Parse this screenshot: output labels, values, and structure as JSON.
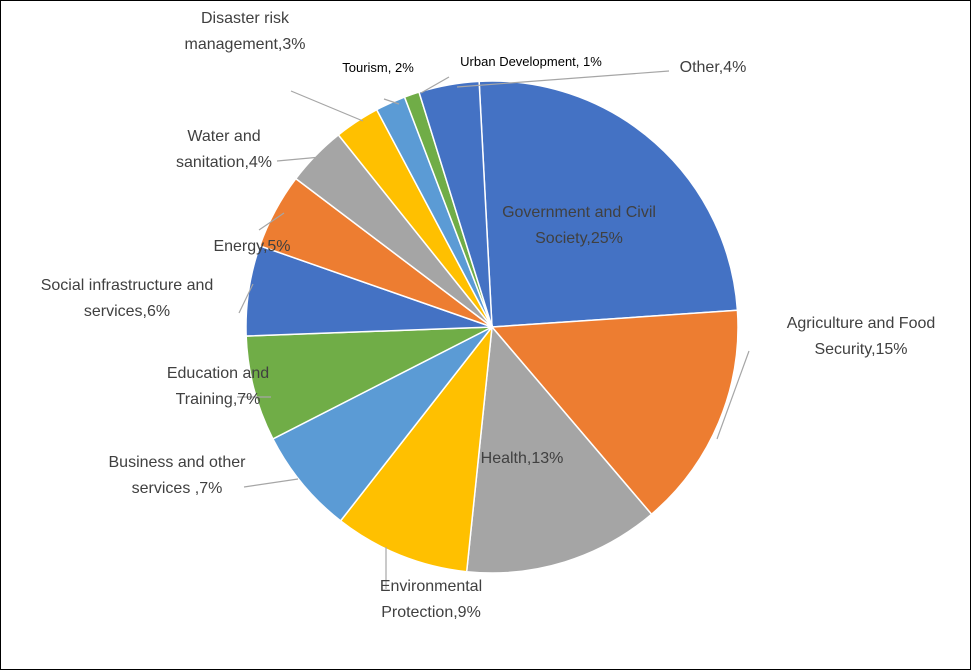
{
  "chart_data": {
    "type": "pie",
    "slices": [
      {
        "label": [
          "Government and Civil",
          "Society,25%"
        ],
        "value": 25,
        "color": "#4472c4"
      },
      {
        "label": [
          "Agriculture and Food",
          "Security,15%"
        ],
        "value": 15,
        "color": "#ed7d31"
      },
      {
        "label": [
          "Health,13%"
        ],
        "value": 13,
        "color": "#a5a5a5"
      },
      {
        "label": [
          "Environmental",
          "Protection,9%"
        ],
        "value": 9,
        "color": "#ffc000"
      },
      {
        "label": [
          "Business and other",
          "services ,7%"
        ],
        "value": 7,
        "color": "#5b9bd5"
      },
      {
        "label": [
          "Education and",
          "Training,7%"
        ],
        "value": 7,
        "color": "#70ad47"
      },
      {
        "label": [
          "Social infrastructure and",
          "services,6%"
        ],
        "value": 6,
        "color": "#4472c4"
      },
      {
        "label": [
          "Energy,5%"
        ],
        "value": 5,
        "color": "#ed7d31"
      },
      {
        "label": [
          "Water and",
          "sanitation,4%"
        ],
        "value": 4,
        "color": "#a5a5a5"
      },
      {
        "label": [
          "Disaster risk",
          "management,3%"
        ],
        "value": 3,
        "color": "#ffc000"
      },
      {
        "label": [
          "Tourism, 2%"
        ],
        "value": 2,
        "color": "#5b9bd5"
      },
      {
        "label": [
          "Urban Development, 1%"
        ],
        "value": 1,
        "color": "#70ad47"
      },
      {
        "label": [
          "Other,4%"
        ],
        "value": 4,
        "color": "#4472c4"
      }
    ]
  }
}
